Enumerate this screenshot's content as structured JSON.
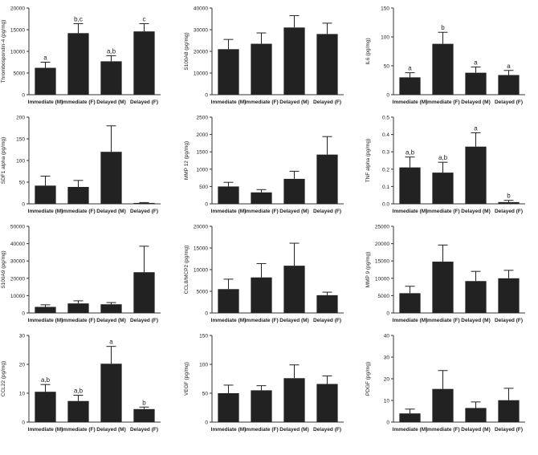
{
  "colors": {
    "bar": "#222222",
    "axis": "#333333",
    "text": "#222222"
  },
  "chart_data": [
    {
      "type": "bar",
      "ylabel": "Thrombospondin-4 (pg/mg)",
      "categories": [
        "Immediate (M)",
        "Immediate (F)",
        "Delayed (M)",
        "Delayed (F)"
      ],
      "values": [
        6200,
        14200,
        7700,
        14600
      ],
      "errors": [
        1300,
        2200,
        1300,
        1800
      ],
      "annotations": [
        "a",
        "b,c",
        "a,b",
        "c"
      ],
      "ylim": [
        0,
        20000
      ],
      "yticks": [
        "0",
        "5000",
        "10000",
        "15000",
        "20000"
      ]
    },
    {
      "type": "bar",
      "ylabel": "S100A8 (pg/mg)",
      "categories": [
        "Immediate (M)",
        "Immediate (F)",
        "Delayed (M)",
        "Delayed (F)"
      ],
      "values": [
        21000,
        23500,
        31000,
        28000
      ],
      "errors": [
        4500,
        5000,
        5500,
        5000
      ],
      "annotations": [
        "",
        "",
        "",
        ""
      ],
      "ylim": [
        0,
        40000
      ],
      "yticks": [
        "0",
        "10000",
        "20000",
        "30000",
        "40000"
      ]
    },
    {
      "type": "bar",
      "ylabel": "IL6 (pg/mg)",
      "categories": [
        "Immediate (M)",
        "Immediate (F)",
        "Delayed (M)",
        "Delayed (F)"
      ],
      "values": [
        30,
        88,
        38,
        34
      ],
      "errors": [
        8,
        20,
        10,
        8
      ],
      "annotations": [
        "a",
        "b",
        "a",
        "a"
      ],
      "ylim": [
        0,
        150
      ],
      "yticks": [
        "0",
        "50",
        "100",
        "150"
      ]
    },
    {
      "type": "bar",
      "ylabel": "SDF1 alpha (pg/mg)",
      "categories": [
        "Immediate (M)",
        "Immediate (F)",
        "Delayed (M)",
        "Delayed (F)"
      ],
      "values": [
        42,
        39,
        120,
        2
      ],
      "errors": [
        22,
        15,
        60,
        1
      ],
      "annotations": [
        "",
        "",
        "",
        ""
      ],
      "ylim": [
        0,
        200
      ],
      "yticks": [
        "0",
        "50",
        "100",
        "150",
        "200"
      ]
    },
    {
      "type": "bar",
      "ylabel": "MMP 12 (pg/mg)",
      "categories": [
        "Immediate (M)",
        "Immediate (F)",
        "Delayed (M)",
        "Delayed (F)"
      ],
      "values": [
        500,
        330,
        720,
        1420
      ],
      "errors": [
        120,
        80,
        220,
        520
      ],
      "annotations": [
        "",
        "",
        "",
        ""
      ],
      "ylim": [
        0,
        2500
      ],
      "yticks": [
        "0",
        "500",
        "1000",
        "1500",
        "2000",
        "2500"
      ]
    },
    {
      "type": "bar",
      "ylabel": "TNF alpha (pg/mg)",
      "categories": [
        "Immediate (M)",
        "Immediate (F)",
        "Delayed (M)",
        "Delayed (F)"
      ],
      "values": [
        0.21,
        0.18,
        0.33,
        0.01
      ],
      "errors": [
        0.06,
        0.06,
        0.08,
        0.01
      ],
      "annotations": [
        "a,b",
        "a,b",
        "a",
        "b"
      ],
      "ylim": [
        0,
        0.5
      ],
      "yticks": [
        "0.0",
        "0.1",
        "0.2",
        "0.3",
        "0.4",
        "0.5"
      ]
    },
    {
      "type": "bar",
      "ylabel": "S100A9 (pg/mg)",
      "categories": [
        "Immediate (M)",
        "Immediate (F)",
        "Delayed (M)",
        "Delayed (F)"
      ],
      "values": [
        3500,
        5500,
        5000,
        23500
      ],
      "errors": [
        1200,
        1500,
        1000,
        15000
      ],
      "annotations": [
        "",
        "",
        "",
        ""
      ],
      "ylim": [
        0,
        50000
      ],
      "yticks": [
        "0",
        "10000",
        "20000",
        "30000",
        "40000",
        "50000"
      ]
    },
    {
      "type": "bar",
      "ylabel": "CCL8/MCP2 (pg/mg)",
      "categories": [
        "Immediate (M)",
        "Immediate (F)",
        "Delayed (M)",
        "Delayed (F)"
      ],
      "values": [
        5500,
        8200,
        10900,
        4100
      ],
      "errors": [
        2300,
        3200,
        5200,
        700
      ],
      "annotations": [
        "",
        "",
        "",
        ""
      ],
      "ylim": [
        0,
        20000
      ],
      "yticks": [
        "0",
        "5000",
        "10000",
        "15000",
        "20000"
      ]
    },
    {
      "type": "bar",
      "ylabel": "MMP 9 (pg/mg)",
      "categories": [
        "Immediate (M)",
        "Immediate (F)",
        "Delayed (M)",
        "Delayed (F)"
      ],
      "values": [
        5700,
        14800,
        9200,
        10000
      ],
      "errors": [
        2000,
        4800,
        2800,
        2300
      ],
      "annotations": [
        "",
        "",
        "",
        ""
      ],
      "ylim": [
        0,
        25000
      ],
      "yticks": [
        "0",
        "5000",
        "10000",
        "15000",
        "20000",
        "25000"
      ]
    },
    {
      "type": "bar",
      "ylabel": "CCL22 (pg/mg)",
      "categories": [
        "Immediate (M)",
        "Immediate (F)",
        "Delayed (M)",
        "Delayed (F)"
      ],
      "values": [
        10.5,
        7.3,
        20.2,
        4.5
      ],
      "errors": [
        2.5,
        2.0,
        6.0,
        0.7
      ],
      "annotations": [
        "a,b",
        "a,b",
        "a",
        "b"
      ],
      "ylim": [
        0,
        30
      ],
      "yticks": [
        "0",
        "10",
        "20",
        "30"
      ]
    },
    {
      "type": "bar",
      "ylabel": "VEGF (pg/mg)",
      "categories": [
        "Immediate (M)",
        "Immediate (F)",
        "Delayed (M)",
        "Delayed (F)"
      ],
      "values": [
        50,
        55,
        76,
        66
      ],
      "errors": [
        14,
        8,
        23,
        14
      ],
      "annotations": [
        "",
        "",
        "",
        ""
      ],
      "ylim": [
        0,
        150
      ],
      "yticks": [
        "0",
        "50",
        "100",
        "150"
      ]
    },
    {
      "type": "bar",
      "ylabel": "PDGF (pg/mg)",
      "categories": [
        "Immediate (M)",
        "Immediate (F)",
        "Delayed (M)",
        "Delayed (F)"
      ],
      "values": [
        4,
        15.3,
        6.5,
        10.1
      ],
      "errors": [
        2,
        8.5,
        2.8,
        5.5
      ],
      "annotations": [
        "",
        "",
        "",
        ""
      ],
      "ylim": [
        0,
        40
      ],
      "yticks": [
        "0",
        "10",
        "20",
        "30",
        "40"
      ]
    }
  ]
}
